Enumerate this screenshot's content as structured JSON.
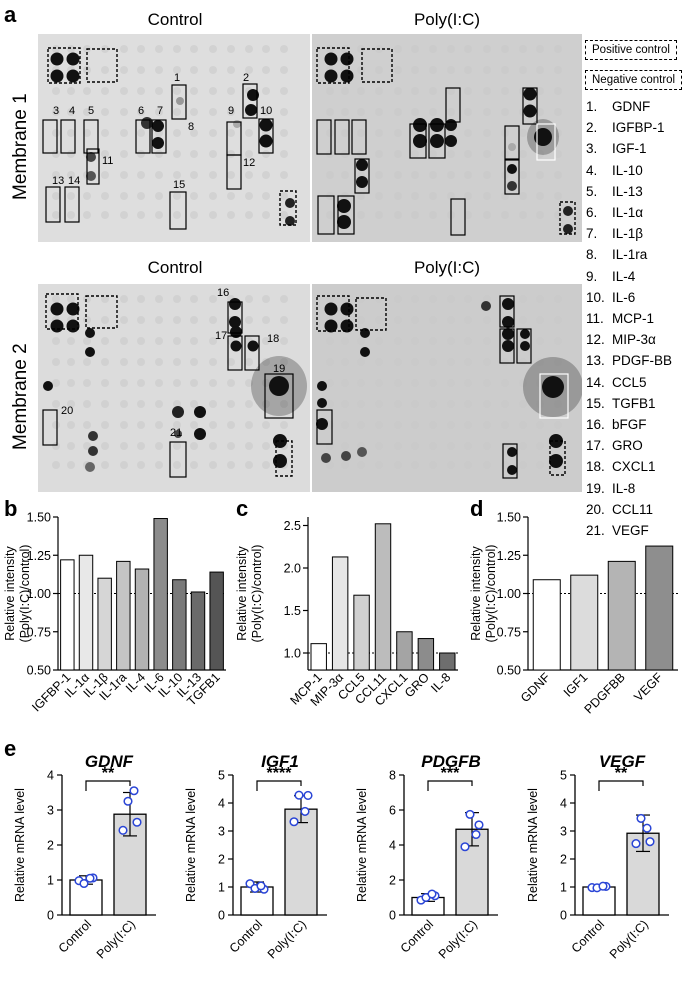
{
  "panel_letters": {
    "a": "a",
    "b": "b",
    "c": "c",
    "d": "d",
    "e": "e"
  },
  "blots": {
    "control_title": "Control",
    "polyic_title": "Poly(I:C)",
    "membrane1_label": "Membrane 1",
    "membrane2_label": "Membrane 2",
    "positive_control": "Positive control",
    "negative_control": "Negative control",
    "spot_labels": [
      "1",
      "2",
      "3",
      "4",
      "5",
      "6",
      "7",
      "8",
      "9",
      "10",
      "11",
      "12",
      "13",
      "14",
      "15",
      "16",
      "17",
      "18",
      "19",
      "20",
      "21"
    ],
    "legend": [
      {
        "num": "1.",
        "name": "GDNF"
      },
      {
        "num": "2.",
        "name": "IGFBP-1"
      },
      {
        "num": "3.",
        "name": "IGF-1"
      },
      {
        "num": "4.",
        "name": "IL-10"
      },
      {
        "num": "5.",
        "name": "IL-13"
      },
      {
        "num": "6.",
        "name": "IL-1α"
      },
      {
        "num": "7.",
        "name": "IL-1β"
      },
      {
        "num": "8.",
        "name": "IL-1ra"
      },
      {
        "num": "9.",
        "name": "IL-4"
      },
      {
        "num": "10.",
        "name": "IL-6"
      },
      {
        "num": "11.",
        "name": "MCP-1"
      },
      {
        "num": "12.",
        "name": "MIP-3α"
      },
      {
        "num": "13.",
        "name": "PDGF-BB"
      },
      {
        "num": "14.",
        "name": "CCL5"
      },
      {
        "num": "15.",
        "name": "TGFB1"
      },
      {
        "num": "16.",
        "name": "bFGF"
      },
      {
        "num": "17.",
        "name": "GRO"
      },
      {
        "num": "18.",
        "name": "CXCL1"
      },
      {
        "num": "19.",
        "name": "IL-8"
      },
      {
        "num": "20.",
        "name": "CCL11"
      },
      {
        "num": "21.",
        "name": "VEGF"
      }
    ]
  },
  "chart_data": [
    {
      "id": "b",
      "type": "bar",
      "ylabel": "Relative intensity (Poly(I:C)/control)",
      "ylim": [
        0.5,
        1.5
      ],
      "yticks": [
        "0.50",
        "0.75",
        "1.00",
        "1.25",
        "1.50"
      ],
      "ytick_values": [
        0.5,
        0.75,
        1.0,
        1.25,
        1.5
      ],
      "reference_line": 1.0,
      "categories": [
        "IGFBP-1",
        "IL-1α",
        "IL-1β",
        "IL-1ra",
        "IL-4",
        "IL-6",
        "IL-10",
        "IL-13",
        "TGFB1"
      ],
      "values": [
        1.22,
        1.25,
        1.1,
        1.21,
        1.16,
        1.49,
        1.09,
        1.01,
        1.14
      ],
      "colors": [
        "#ffffff",
        "#e8e8e8",
        "#d6d6d6",
        "#c4c4c4",
        "#b2b2b2",
        "#8c8c8c",
        "#7a7a7a",
        "#6a6a6a",
        "#555555"
      ]
    },
    {
      "id": "c",
      "type": "bar",
      "ylabel": "Relative intensity (Poly(I:C)/control)",
      "ylim": [
        0.8,
        2.6
      ],
      "yticks": [
        "1.0",
        "1.5",
        "2.0",
        "2.5"
      ],
      "ytick_values": [
        1.0,
        1.5,
        2.0,
        2.5
      ],
      "reference_line": 1.0,
      "categories": [
        "MCP-1",
        "MIP-3α",
        "CCL5",
        "CCL11",
        "CXCL1",
        "GRO",
        "IL-8"
      ],
      "values": [
        1.11,
        2.13,
        1.68,
        2.52,
        1.25,
        1.17,
        1.0
      ],
      "colors": [
        "#ffffff",
        "#e6e6e6",
        "#d0d0d0",
        "#bcbcbc",
        "#a4a4a4",
        "#8c8c8c",
        "#6e6e6e"
      ]
    },
    {
      "id": "d",
      "type": "bar",
      "ylabel": "Relative intensity (Poly(I:C)/control)",
      "ylim": [
        0.5,
        1.5
      ],
      "yticks": [
        "0.50",
        "0.75",
        "1.00",
        "1.25",
        "1.50"
      ],
      "ytick_values": [
        0.5,
        0.75,
        1.0,
        1.25,
        1.5
      ],
      "reference_line": 1.0,
      "categories": [
        "GDNF",
        "IGF1",
        "PDGFBB",
        "VEGF"
      ],
      "values": [
        1.09,
        1.12,
        1.21,
        1.31
      ],
      "colors": [
        "#ffffff",
        "#dcdcdc",
        "#b4b4b4",
        "#8e8e8e"
      ]
    },
    {
      "id": "e1",
      "type": "bar",
      "title": "GDNF",
      "ylabel": "Relative mRNA level",
      "ylim": [
        0,
        4
      ],
      "yticks": [
        "0",
        "1",
        "2",
        "3",
        "4"
      ],
      "ytick_values": [
        0,
        1,
        2,
        3,
        4
      ],
      "categories": [
        "Control",
        "Poly(I:C)"
      ],
      "values": [
        1.0,
        2.88
      ],
      "errors": [
        0.12,
        0.62
      ],
      "points": [
        [
          0.98,
          1.06,
          0.9,
          1.05
        ],
        [
          2.42,
          2.65,
          3.25,
          3.55
        ]
      ],
      "significance": "**"
    },
    {
      "id": "e2",
      "type": "bar",
      "title": "IGF1",
      "ylabel": "Relative mRNA level",
      "ylim": [
        0,
        5
      ],
      "yticks": [
        "0",
        "1",
        "2",
        "3",
        "4",
        "5"
      ],
      "ytick_values": [
        0,
        1,
        2,
        3,
        4,
        5
      ],
      "categories": [
        "Control",
        "Poly(I:C)"
      ],
      "values": [
        1.0,
        3.78
      ],
      "errors": [
        0.18,
        0.48
      ],
      "points": [
        [
          1.12,
          0.92,
          0.95,
          1.04
        ],
        [
          3.33,
          4.27,
          4.28,
          3.7
        ]
      ],
      "significance": "****"
    },
    {
      "id": "e3",
      "type": "bar",
      "title": "PDGFB",
      "ylabel": "Relative mRNA level",
      "ylim": [
        0,
        8
      ],
      "yticks": [
        "0",
        "2",
        "4",
        "6",
        "8"
      ],
      "ytick_values": [
        0,
        2,
        4,
        6,
        8
      ],
      "categories": [
        "Control",
        "Poly(I:C)"
      ],
      "values": [
        1.0,
        4.9
      ],
      "errors": [
        0.22,
        0.95
      ],
      "points": [
        [
          0.85,
          1.1,
          1.0,
          1.2
        ],
        [
          3.9,
          5.15,
          5.75,
          4.6
        ]
      ],
      "significance": "***"
    },
    {
      "id": "e4",
      "type": "bar",
      "title": "VEGF",
      "ylabel": "Relative mRNA level",
      "ylim": [
        0,
        5
      ],
      "yticks": [
        "0",
        "1",
        "2",
        "3",
        "4",
        "5"
      ],
      "ytick_values": [
        0,
        1,
        2,
        3,
        4,
        5
      ],
      "categories": [
        "Control",
        "Poly(I:C)"
      ],
      "values": [
        1.0,
        2.92
      ],
      "errors": [
        0.06,
        0.65
      ],
      "points": [
        [
          0.98,
          1.02,
          0.97,
          1.03
        ],
        [
          2.55,
          2.62,
          3.45,
          3.1
        ]
      ],
      "significance": "**"
    }
  ]
}
